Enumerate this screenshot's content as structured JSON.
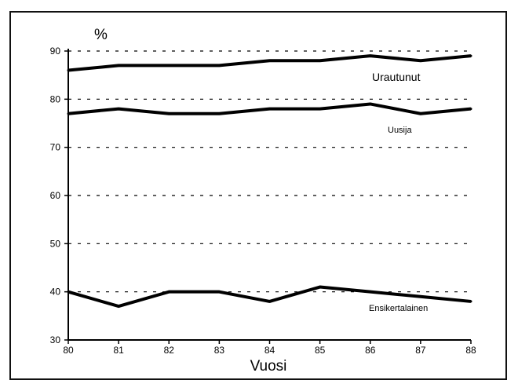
{
  "chart_data": {
    "type": "line",
    "x": [
      "80",
      "81",
      "82",
      "83",
      "84",
      "85",
      "86",
      "87",
      "88"
    ],
    "xlabel": "Vuosi",
    "ylabel": "%",
    "ylim": [
      30,
      90
    ],
    "yticks": [
      "30",
      "40",
      "50",
      "60",
      "70",
      "80",
      "90"
    ],
    "grid": "dashed-horizontal",
    "series": [
      {
        "name": "Urautunut",
        "values": [
          86,
          87,
          87,
          87,
          88,
          88,
          89,
          88,
          89
        ],
        "color": "#000000"
      },
      {
        "name": "Uusija",
        "values": [
          77,
          78,
          77,
          77,
          78,
          78,
          79,
          77,
          78
        ],
        "color": "#000000"
      },
      {
        "name": "Ensikertalainen",
        "values": [
          40,
          37,
          40,
          40,
          38,
          41,
          40,
          39,
          38
        ],
        "color": "#000000"
      }
    ]
  }
}
